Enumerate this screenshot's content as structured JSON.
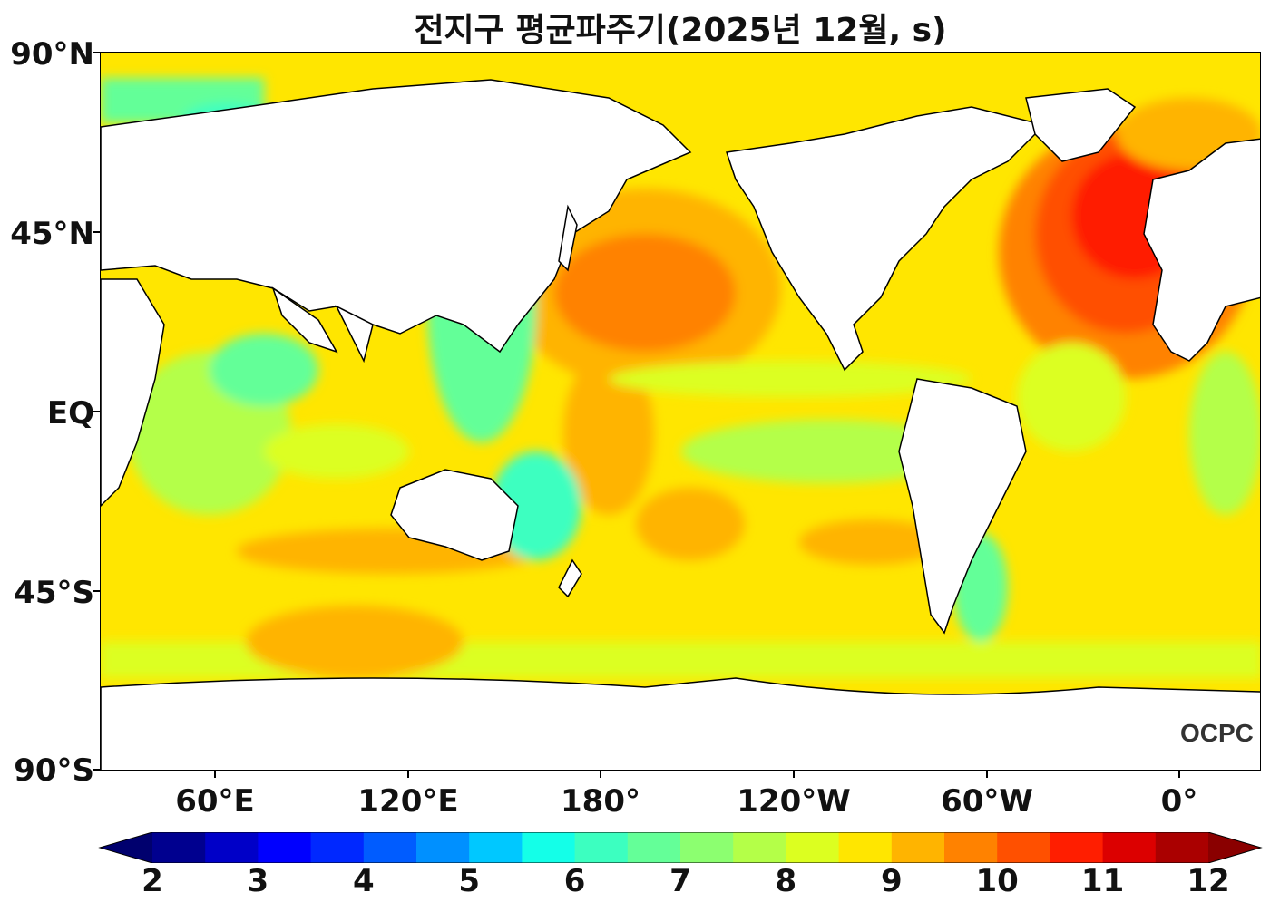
{
  "title": "전지구 평균파주기(2025년 12월, s)",
  "logo": "OCPC",
  "lat_labels": [
    "90°N",
    "45°N",
    "EQ",
    "45°S",
    "90°S"
  ],
  "lon_labels": [
    "60°E",
    "120°E",
    "180°",
    "120°W",
    "60°W",
    "0°"
  ],
  "colorbar": {
    "labels": [
      "2",
      "3",
      "4",
      "5",
      "6",
      "7",
      "8",
      "9",
      "10",
      "11",
      "12"
    ],
    "min": 2,
    "max": 12,
    "step": 0.5,
    "colors": [
      "#00008f",
      "#0000c8",
      "#0000ff",
      "#0028ff",
      "#005cff",
      "#0090ff",
      "#00c8ff",
      "#14ffe8",
      "#3cffc0",
      "#64ff98",
      "#8cff70",
      "#b4ff48",
      "#dcff20",
      "#ffe600",
      "#ffb400",
      "#ff8200",
      "#ff5000",
      "#ff1e00",
      "#dc0000",
      "#aa0000"
    ],
    "under_color": "#00006e",
    "over_color": "#8a0000"
  },
  "colors": {
    "land": "#ffffff",
    "coast": "#000000"
  }
}
